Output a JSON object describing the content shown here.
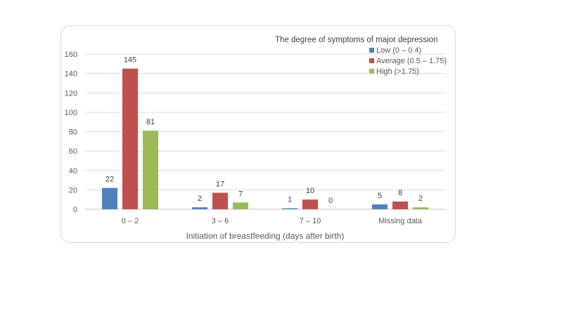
{
  "chart_data": {
    "type": "bar",
    "categories": [
      "0 – 2",
      "3 – 6",
      "7 – 10",
      "Missing data"
    ],
    "series": [
      {
        "name": "Low (0 – 0.4)",
        "values": [
          22,
          2,
          1,
          5
        ],
        "color": "#4f81bd"
      },
      {
        "name": "Average (0.5 – 1.75)",
        "values": [
          145,
          17,
          10,
          8
        ],
        "color": "#c0504d"
      },
      {
        "name": "High (>1.75)",
        "values": [
          81,
          7,
          0,
          2
        ],
        "color": "#9bbb59"
      }
    ],
    "title": "",
    "legend_title": "The degree of symptoms of major depression",
    "xlabel": "Initiation of breastfeeding (days after birth)",
    "ylabel": "",
    "ylim": [
      0,
      160
    ],
    "yticks": [
      0,
      20,
      40,
      60,
      80,
      100,
      120,
      140,
      160
    ],
    "grid": true,
    "legend_position": "top-right"
  }
}
